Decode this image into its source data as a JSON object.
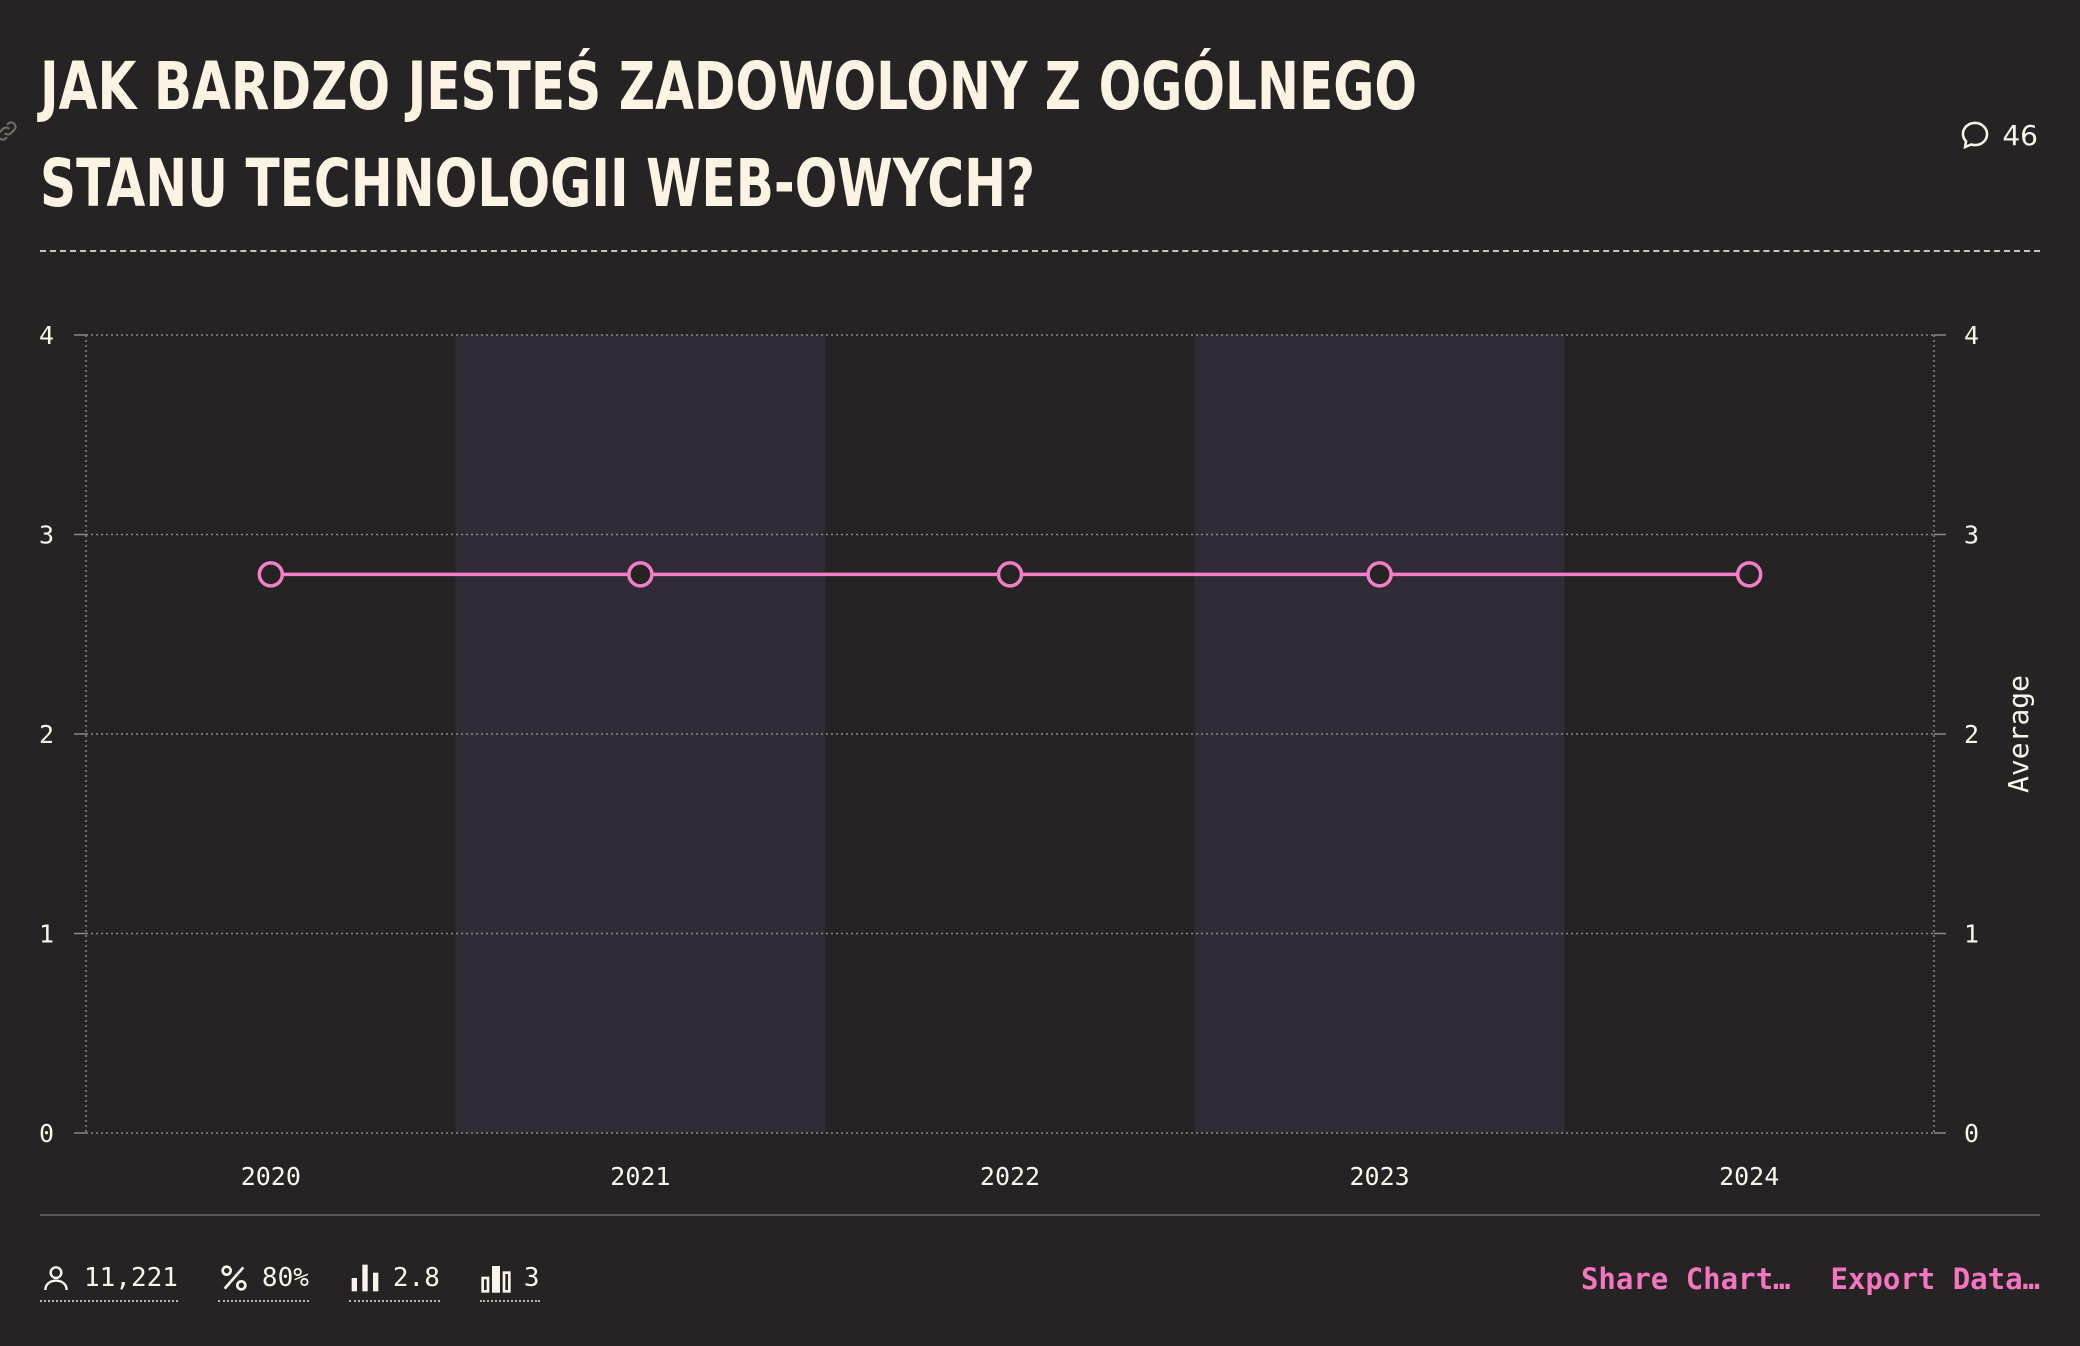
{
  "title": "JAK BARDZO JESTEŚ ZADOWOLONY Z OGÓLNEGO STANU TECHNOLOGII WEB-OWYCH?",
  "comments_count": "46",
  "footer": {
    "respondents": "11,221",
    "percent": "80%",
    "average": "2.8",
    "bucket": "3"
  },
  "actions": {
    "share": "Share Chart…",
    "export": "Export Data…"
  },
  "colors": {
    "line": "#f47fc6",
    "band": "#302b37",
    "background": "#252324"
  },
  "chart_data": {
    "type": "line",
    "x": [
      "2020",
      "2021",
      "2022",
      "2023",
      "2024"
    ],
    "series": [
      {
        "values": [
          2.8,
          2.8,
          2.8,
          2.8,
          2.8
        ]
      }
    ],
    "ylim": [
      0,
      4
    ],
    "yticks": [
      "0",
      "1",
      "2",
      "3",
      "4"
    ],
    "ylabel_right": "Average",
    "grid": true,
    "alternating_bands": true
  }
}
